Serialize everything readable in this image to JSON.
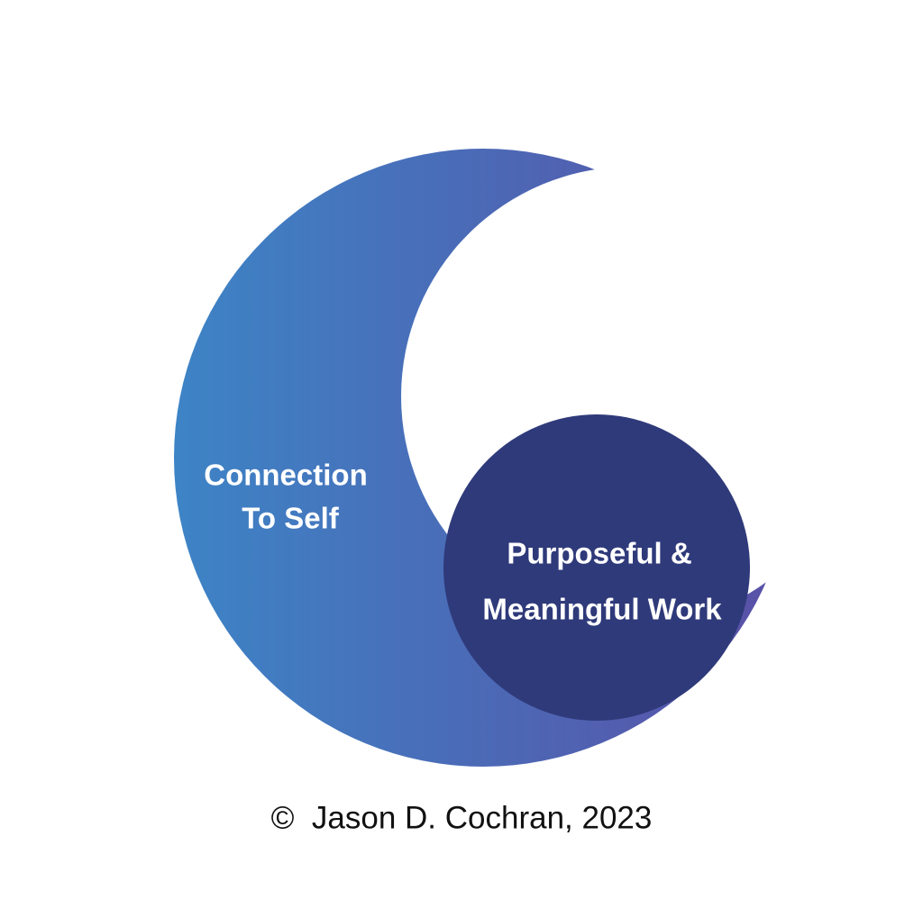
{
  "left_label": {
    "lines": [
      "Connection",
      "To Self"
    ]
  },
  "right_label": {
    "lines": [
      "Purposeful &",
      "Meaningful Work"
    ]
  },
  "footer": {
    "copyright": "©  Jason D. Cochran, 2023"
  }
}
